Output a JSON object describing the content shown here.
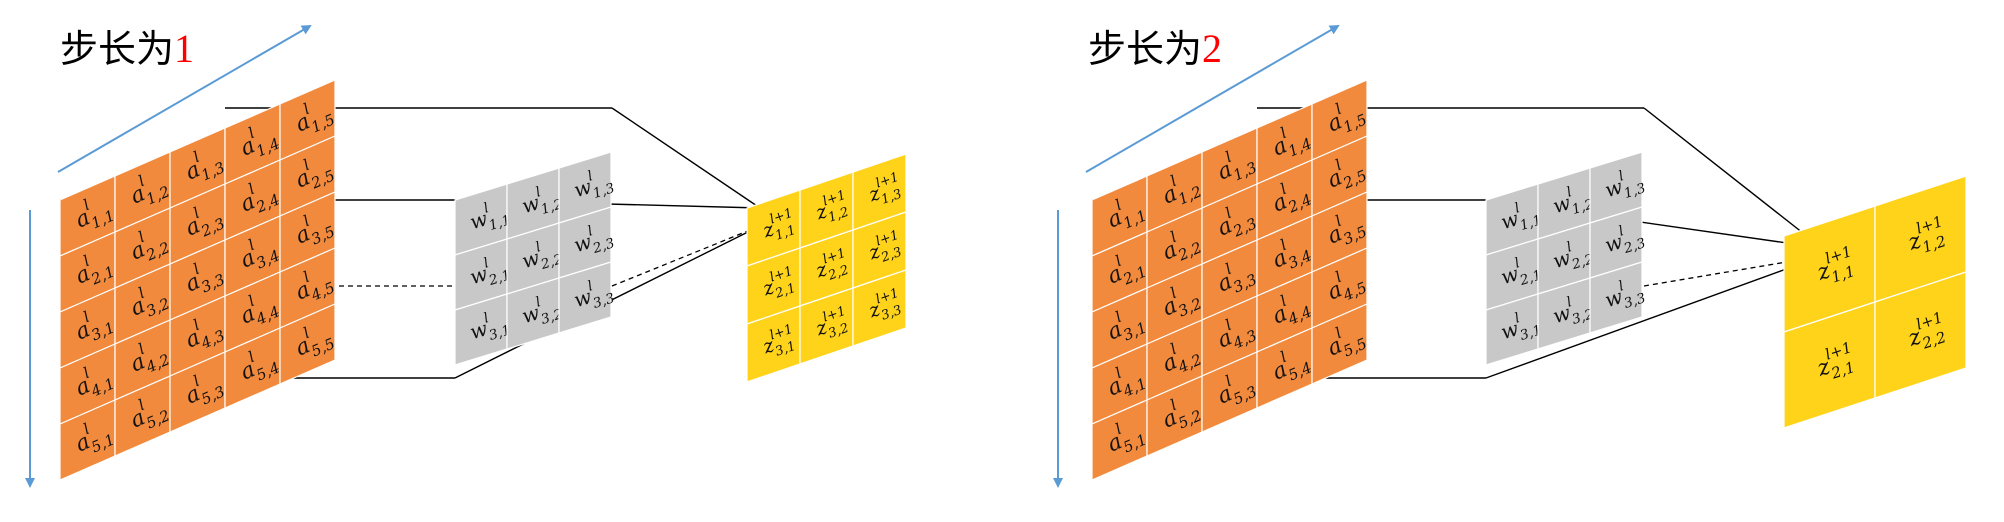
{
  "panels": [
    {
      "id": "stride1",
      "title_prefix": "步长为",
      "title_value": "1",
      "input": {
        "rows": 5,
        "cols": 5,
        "cells": [
          [
            "a_{1,1}^{l}",
            "a_{1,2}^{l}",
            "a_{1,3}^{l}",
            "a_{1,4}^{l}",
            "a_{1,5}^{l}"
          ],
          [
            "a_{2,1}^{l}",
            "a_{2,2}^{l}",
            "a_{2,3}^{l}",
            "a_{2,4}^{l}",
            "a_{2,5}^{l}"
          ],
          [
            "a_{3,1}^{l}",
            "a_{3,2}^{l}",
            "a_{3,3}^{l}",
            "a_{3,4}^{l}",
            "a_{3,5}^{l}"
          ],
          [
            "a_{4,1}^{l}",
            "a_{4,2}^{l}",
            "a_{4,3}^{l}",
            "a_{4,4}^{l}",
            "a_{4,5}^{l}"
          ],
          [
            "a_{5,1}^{l}",
            "a_{5,2}^{l}",
            "a_{5,3}^{l}",
            "a_{5,4}^{l}",
            "a_{5,5}^{l}"
          ]
        ]
      },
      "kernel": {
        "rows": 3,
        "cols": 3,
        "cells": [
          [
            "w_{1,1}^{l}",
            "w_{1,2}^{l}",
            "w_{1,3}^{l}"
          ],
          [
            "w_{2,1}^{l}",
            "w_{2,2}^{l}",
            "w_{2,3}^{l}"
          ],
          [
            "w_{3,1}^{l}",
            "w_{3,2}^{l}",
            "w_{3,3}^{l}"
          ]
        ]
      },
      "output": {
        "rows": 3,
        "cols": 3,
        "cells": [
          [
            "z_{1,1}^{l+1}",
            "z_{1,2}^{l+1}",
            "z_{1,3}^{l+1}"
          ],
          [
            "z_{2,1}^{l+1}",
            "z_{2,2}^{l+1}",
            "z_{2,3}^{l+1}"
          ],
          [
            "z_{3,1}^{l+1}",
            "z_{3,2}^{l+1}",
            "z_{3,3}^{l+1}"
          ]
        ]
      }
    },
    {
      "id": "stride2",
      "title_prefix": "步长为",
      "title_value": "2",
      "input": {
        "rows": 5,
        "cols": 5,
        "cells": [
          [
            "a_{1,1}^{l}",
            "a_{1,2}^{l}",
            "a_{1,3}^{l}",
            "a_{1,4}^{l}",
            "a_{1,5}^{l}"
          ],
          [
            "a_{2,1}^{l}",
            "a_{2,2}^{l}",
            "a_{2,3}^{l}",
            "a_{2,4}^{l}",
            "a_{2,5}^{l}"
          ],
          [
            "a_{3,1}^{l}",
            "a_{3,2}^{l}",
            "a_{3,3}^{l}",
            "a_{3,4}^{l}",
            "a_{3,5}^{l}"
          ],
          [
            "a_{4,1}^{l}",
            "a_{4,2}^{l}",
            "a_{4,3}^{l}",
            "a_{4,4}^{l}",
            "a_{4,5}^{l}"
          ],
          [
            "a_{5,1}^{l}",
            "a_{5,2}^{l}",
            "a_{5,3}^{l}",
            "a_{5,4}^{l}",
            "a_{5,5}^{l}"
          ]
        ]
      },
      "kernel": {
        "rows": 3,
        "cols": 3,
        "cells": [
          [
            "w_{1,1}^{l}",
            "w_{1,2}^{l}",
            "w_{1,3}^{l}"
          ],
          [
            "w_{2,1}^{l}",
            "w_{2,2}^{l}",
            "w_{2,3}^{l}"
          ],
          [
            "w_{3,1}^{l}",
            "w_{3,2}^{l}",
            "w_{3,3}^{l}"
          ]
        ]
      },
      "output": {
        "rows": 2,
        "cols": 2,
        "cells": [
          [
            "z_{1,1}^{l+1}",
            "z_{1,2}^{l+1}"
          ],
          [
            "z_{2,1}^{l+1}",
            "z_{2,2}^{l+1}"
          ]
        ]
      }
    }
  ],
  "colors": {
    "input_fill": "#f28a3d",
    "kernel_fill": "#c8c8c8",
    "output_fill": "#ffd31a",
    "accent_red": "#ff0000",
    "arrow_blue": "#5b9bd5"
  }
}
